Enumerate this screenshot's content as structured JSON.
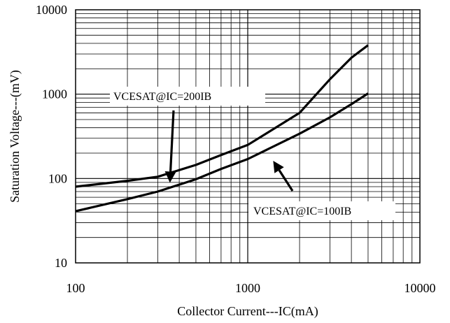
{
  "chart_data": {
    "type": "line",
    "xscale": "log",
    "yscale": "log",
    "xlim": [
      100,
      10000
    ],
    "ylim": [
      10,
      10000
    ],
    "xlabel": "Collector Current---IC(mA)",
    "ylabel": "Saturation Voltage---(mV)",
    "xticks": [
      "100",
      "1000",
      "10000"
    ],
    "yticks": [
      "10",
      "100",
      "1000",
      "10000"
    ],
    "grid": true,
    "series": [
      {
        "name": "VCESAT@IC=200IB",
        "x": [
          100,
          200,
          300,
          500,
          700,
          1000,
          2000,
          3000,
          4000,
          5000
        ],
        "y": [
          80,
          94,
          105,
          145,
          190,
          250,
          600,
          1500,
          2700,
          3800
        ]
      },
      {
        "name": "VCESAT@IC=100IB",
        "x": [
          100,
          200,
          300,
          500,
          700,
          1000,
          2000,
          3000,
          4000,
          5000
        ],
        "y": [
          41,
          57,
          70,
          98,
          130,
          170,
          340,
          530,
          760,
          1020
        ]
      }
    ],
    "annotations": [
      {
        "text": "VCESAT@IC=200IB",
        "series": 0,
        "arrow_to": [
          370,
          112
        ]
      },
      {
        "text": "VCESAT@IC=100IB",
        "series": 1,
        "arrow_to": [
          1500,
          175
        ]
      }
    ]
  }
}
